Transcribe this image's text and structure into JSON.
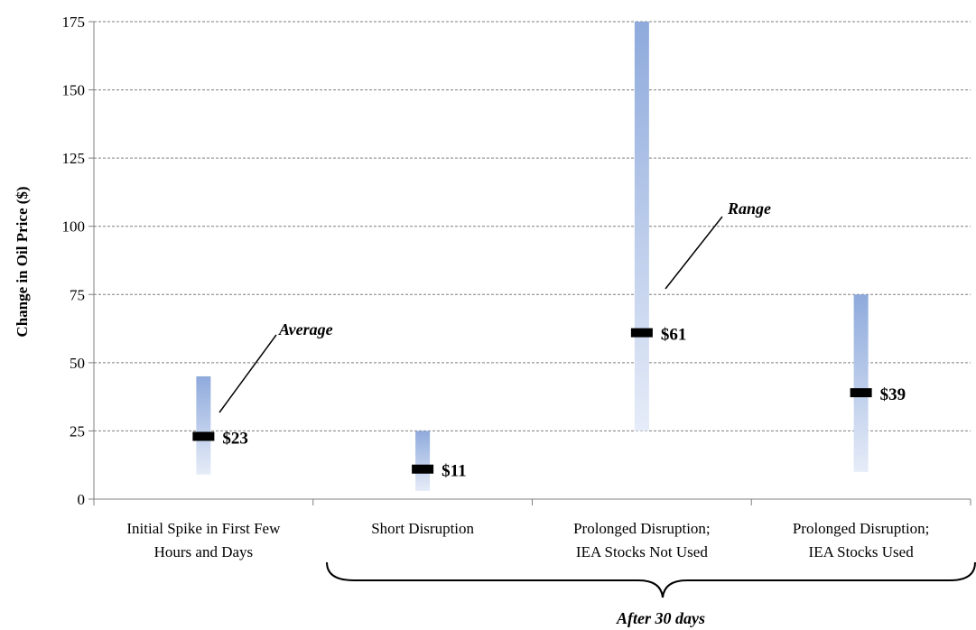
{
  "chart_data": {
    "type": "bar",
    "ylabel": "Change in Oil Price ($)",
    "ylim": [
      0,
      175
    ],
    "yticks": [
      0,
      25,
      50,
      75,
      100,
      125,
      150,
      175
    ],
    "grid": true,
    "categories": [
      [
        "Initial Spike in First Few",
        "Hours and Days"
      ],
      [
        "Short Disruption"
      ],
      [
        "Prolonged Disruption;",
        "IEA Stocks Not Used"
      ],
      [
        "Prolonged Disruption;",
        "IEA Stocks Used"
      ]
    ],
    "ranges": [
      {
        "low": 9,
        "high": 45,
        "average": 23,
        "label": "$23"
      },
      {
        "low": 3,
        "high": 25,
        "average": 11,
        "label": "$11"
      },
      {
        "low": 25,
        "high": 175,
        "average": 61,
        "label": "$61"
      },
      {
        "low": 10,
        "high": 75,
        "average": 39,
        "label": "$39"
      }
    ],
    "annotations": {
      "average": "Average",
      "range": "Range",
      "group": "After 30 days"
    },
    "colors": {
      "bar_top": "#8eaadc",
      "bar_bottom": "#e6ecf8",
      "marker": "#000000",
      "grid": "#7f7f7f"
    }
  }
}
